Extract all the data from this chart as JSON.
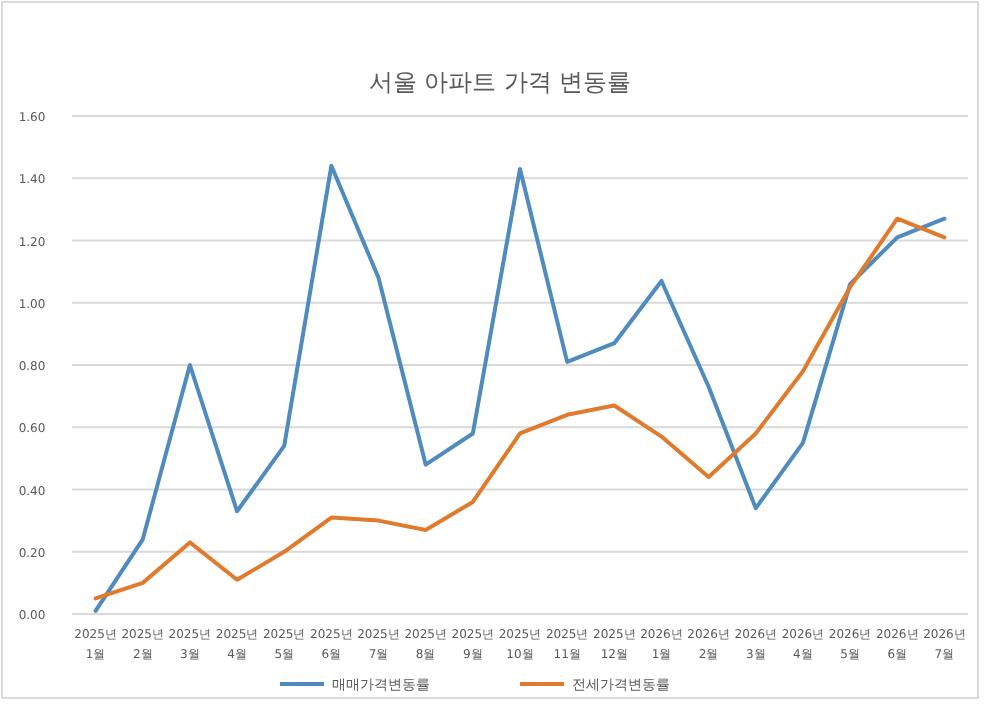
{
  "chart_data": {
    "type": "line",
    "title": "서울 아파트 가격 변동률",
    "categories": [
      "2025년\n1월",
      "2025년\n2월",
      "2025년\n3월",
      "2025년\n4월",
      "2025년\n5월",
      "2025년\n6월",
      "2025년\n7월",
      "2025년\n8월",
      "2025년\n9월",
      "2025년\n10월",
      "2025년\n11월",
      "2025년\n12월",
      "2026년\n1월",
      "2026년\n2월",
      "2026년\n3월",
      "2026년\n4월",
      "2026년\n5월",
      "2026년\n6월",
      "2026년\n7월"
    ],
    "series": [
      {
        "name": "매매가격변동률",
        "color": "#4f8bbf",
        "values": [
          0.01,
          0.24,
          0.8,
          0.33,
          0.54,
          1.44,
          1.08,
          0.48,
          0.58,
          1.43,
          0.81,
          0.87,
          1.07,
          0.73,
          0.34,
          0.55,
          1.06,
          1.21,
          1.27
        ]
      },
      {
        "name": "전세가격변동률",
        "color": "#e07b2e",
        "values": [
          0.05,
          0.1,
          0.23,
          0.11,
          0.2,
          0.31,
          0.3,
          0.27,
          0.36,
          0.58,
          0.64,
          0.67,
          0.57,
          0.44,
          0.58,
          0.78,
          1.05,
          1.27,
          1.21
        ]
      }
    ],
    "ylim": [
      0,
      1.6
    ],
    "yticks": [
      {
        "value": 0,
        "label": "0.00"
      },
      {
        "value": 0.2,
        "label": "0.20"
      },
      {
        "value": 0.4,
        "label": "0.40"
      },
      {
        "value": 0.6,
        "label": "0.60"
      },
      {
        "value": 0.8,
        "label": "0.80"
      },
      {
        "value": 1.0,
        "label": "1.00"
      },
      {
        "value": 1.2,
        "label": "1.20"
      },
      {
        "value": 1.4,
        "label": "1.40"
      },
      {
        "value": 1.6,
        "label": "1.60"
      }
    ],
    "grid": "y",
    "legend": "bottom",
    "marker": "none",
    "line_style": "solid"
  }
}
